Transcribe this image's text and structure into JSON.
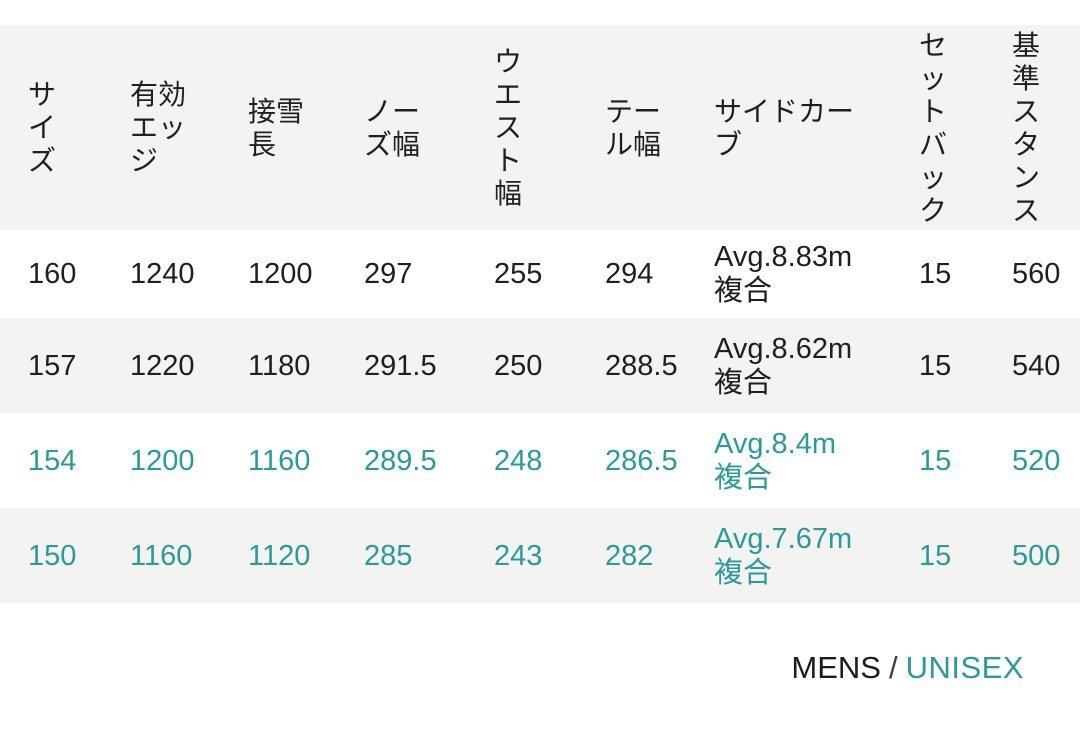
{
  "table": {
    "columns": [
      {
        "key": "size",
        "label": "サイズ"
      },
      {
        "key": "effective_edge",
        "label": "有効エッジ"
      },
      {
        "key": "contact_length",
        "label": "接雪長"
      },
      {
        "key": "nose_width",
        "label": "ノーズ幅"
      },
      {
        "key": "waist_width",
        "label": "ウエスト幅"
      },
      {
        "key": "tail_width",
        "label": "テール幅"
      },
      {
        "key": "sidecut",
        "label": "サイドカーブ"
      },
      {
        "key": "setback",
        "label": "セットバック"
      },
      {
        "key": "stance",
        "label": "基準スタンス"
      }
    ],
    "rows": [
      {
        "cells": [
          "160",
          "1240",
          "1200",
          "297",
          "255",
          "294",
          "Avg.8.83m 複合",
          "15",
          "560"
        ],
        "highlight": false
      },
      {
        "cells": [
          "157",
          "1220",
          "1180",
          "291.5",
          "250",
          "288.5",
          "Avg.8.62m 複合",
          "15",
          "540"
        ],
        "highlight": false
      },
      {
        "cells": [
          "154",
          "1200",
          "1160",
          "289.5",
          "248",
          "286.5",
          "Avg.8.4m 複合",
          "15",
          "520"
        ],
        "highlight": true
      },
      {
        "cells": [
          "150",
          "1160",
          "1120",
          "285",
          "243",
          "282",
          "Avg.7.67m 複合",
          "15",
          "500"
        ],
        "highlight": true
      }
    ]
  },
  "footer": {
    "mens_label": "MENS",
    "separator": "/",
    "unisex_label": "UNISEX"
  },
  "colors": {
    "accent_teal": "#2a9b99",
    "text_dark": "#1f1f1f",
    "stripe_bg": "#f3f3f1"
  }
}
